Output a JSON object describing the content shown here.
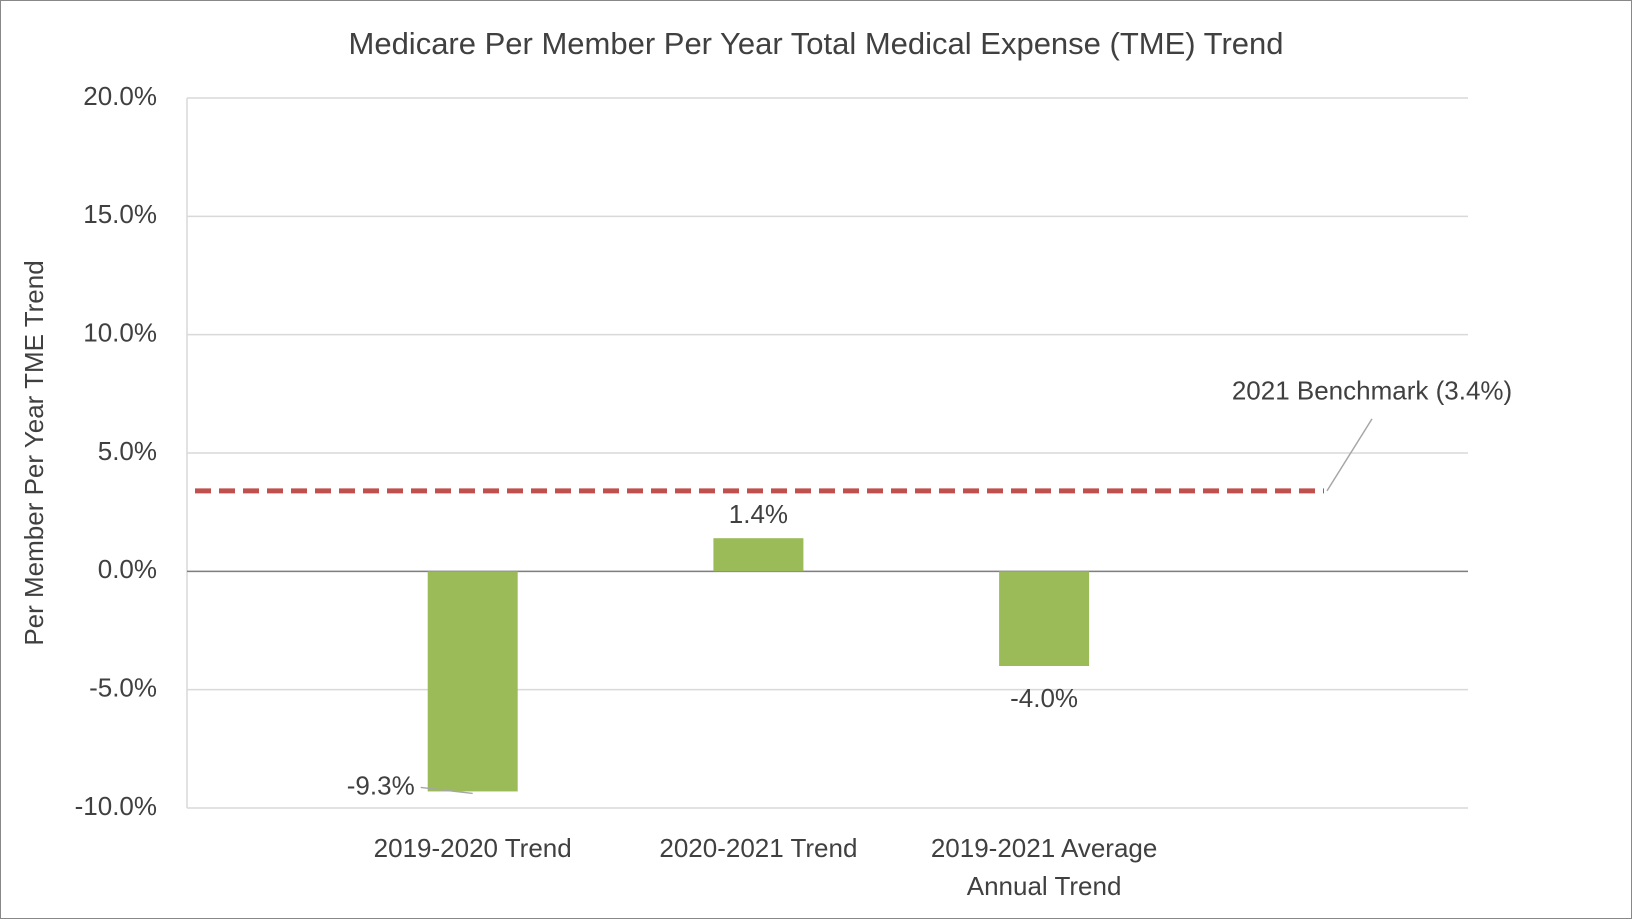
{
  "chart_data": {
    "type": "bar",
    "title": "Medicare Per Member Per Year Total Medical Expense (TME) Trend",
    "y_label": "Per Member Per Year TME Trend",
    "categories": [
      "2019-2020 Trend",
      "2020-2021 Trend",
      "2019-2021 Average Annual Trend"
    ],
    "values": [
      -9.3,
      1.4,
      -4.0
    ],
    "value_labels": [
      "-9.3%",
      "1.4%",
      "-4.0%"
    ],
    "color": "#9bbb59",
    "ylim": [
      -10,
      20
    ],
    "yticks": [
      {
        "value": -10,
        "label": "-10.0%"
      },
      {
        "value": -5,
        "label": "-5.0%"
      },
      {
        "value": 0,
        "label": "0.0%"
      },
      {
        "value": 5,
        "label": "5.0%"
      },
      {
        "value": 10,
        "label": "10.0%"
      },
      {
        "value": 15,
        "label": "15.0%"
      },
      {
        "value": 20,
        "label": "20.0%"
      }
    ],
    "grid": true,
    "benchmark": {
      "value": 3.4,
      "label": "2021 Benchmark (3.4%)",
      "color": "#c0504d"
    }
  }
}
